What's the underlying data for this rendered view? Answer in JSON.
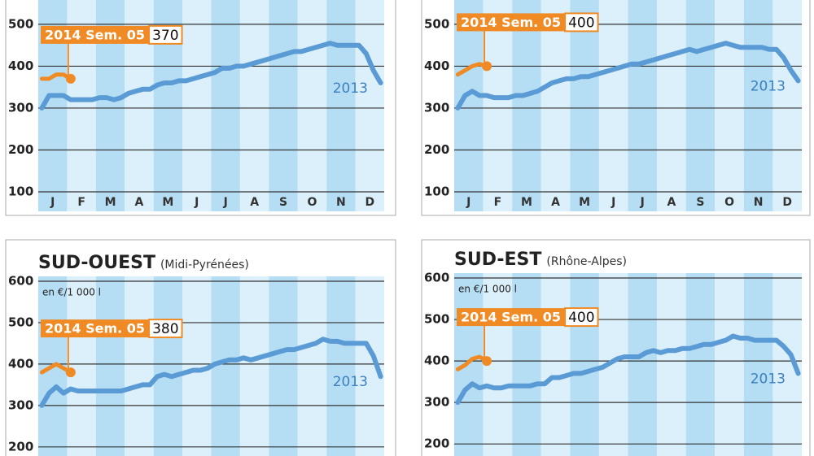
{
  "chart_data": [
    {
      "type": "line",
      "categories": [
        "J",
        null,
        null,
        null,
        "F",
        null,
        null,
        null,
        "M",
        null,
        null,
        null,
        "A",
        null,
        null,
        null,
        "M",
        null,
        null,
        null,
        "J",
        null,
        null,
        null,
        "J",
        null,
        null,
        null,
        "A",
        null,
        null,
        null,
        "S",
        null,
        null,
        null,
        "O",
        null,
        null,
        null,
        "N",
        null,
        null,
        null,
        "D",
        null,
        null,
        null
      ],
      "series": [
        {
          "name": "2013",
          "color": "#5b9bd5",
          "values": [
            300,
            330,
            330,
            330,
            320,
            320,
            320,
            320,
            325,
            325,
            320,
            325,
            335,
            340,
            345,
            345,
            355,
            360,
            360,
            365,
            365,
            370,
            375,
            380,
            385,
            395,
            395,
            400,
            400,
            405,
            410,
            415,
            420,
            425,
            430,
            435,
            435,
            440,
            445,
            450,
            455,
            450,
            450,
            450,
            450,
            430,
            390,
            360
          ]
        },
        {
          "color": "#f08a24",
          "values": [
            370,
            370,
            380,
            380,
            370,
            null,
            null,
            null,
            null,
            null,
            null,
            null,
            null,
            null,
            null,
            null,
            null,
            null,
            null,
            null,
            null,
            null,
            null,
            null,
            null,
            null,
            null,
            null,
            null,
            null,
            null,
            null,
            null,
            null,
            null,
            null,
            null,
            null,
            null,
            null,
            null,
            null,
            null,
            null,
            null,
            null,
            null,
            null
          ]
        }
      ],
      "annotation": {
        "label": "2014 Sem. 05",
        "value": 370
      },
      "ylim": [
        100,
        558
      ],
      "yticks": [
        100,
        200,
        300,
        400,
        500
      ],
      "grid": true
    },
    {
      "type": "line",
      "categories": [
        "J",
        null,
        null,
        null,
        "F",
        null,
        null,
        null,
        "M",
        null,
        null,
        null,
        "A",
        null,
        null,
        null,
        "M",
        null,
        null,
        null,
        "J",
        null,
        null,
        null,
        "J",
        null,
        null,
        null,
        "A",
        null,
        null,
        null,
        "S",
        null,
        null,
        null,
        "O",
        null,
        null,
        null,
        "N",
        null,
        null,
        null,
        "D",
        null,
        null,
        null
      ],
      "series": [
        {
          "name": "2013",
          "color": "#5b9bd5",
          "values": [
            300,
            330,
            340,
            330,
            330,
            325,
            325,
            325,
            330,
            330,
            335,
            340,
            350,
            360,
            365,
            370,
            370,
            375,
            375,
            380,
            385,
            390,
            395,
            400,
            405,
            405,
            410,
            415,
            420,
            425,
            430,
            435,
            440,
            435,
            440,
            445,
            450,
            455,
            450,
            445,
            445,
            445,
            445,
            440,
            440,
            420,
            390,
            365
          ]
        },
        {
          "color": "#f08a24",
          "values": [
            380,
            390,
            400,
            405,
            400,
            null,
            null,
            null,
            null,
            null,
            null,
            null,
            null,
            null,
            null,
            null,
            null,
            null,
            null,
            null,
            null,
            null,
            null,
            null,
            null,
            null,
            null,
            null,
            null,
            null,
            null,
            null,
            null,
            null,
            null,
            null,
            null,
            null,
            null,
            null,
            null,
            null,
            null,
            null,
            null,
            null,
            null,
            null
          ]
        }
      ],
      "annotation": {
        "label": "2014 Sem. 05",
        "value": 400
      },
      "ylim": [
        100,
        558
      ],
      "yticks": [
        100,
        200,
        300,
        400,
        500
      ],
      "grid": true
    },
    {
      "type": "line",
      "title": "SUD-OUEST",
      "subtitle": "(Midi-Pyrénées)",
      "unit_label": "en €/1 000 l",
      "series": [
        {
          "name": "2013",
          "color": "#5b9bd5",
          "values": [
            300,
            330,
            345,
            330,
            340,
            335,
            335,
            335,
            335,
            335,
            335,
            335,
            340,
            345,
            350,
            350,
            370,
            375,
            370,
            375,
            380,
            385,
            385,
            390,
            400,
            405,
            410,
            410,
            415,
            410,
            415,
            420,
            425,
            430,
            435,
            435,
            440,
            445,
            450,
            460,
            455,
            455,
            450,
            450,
            450,
            450,
            420,
            370
          ]
        },
        {
          "color": "#f08a24",
          "values": [
            380,
            390,
            400,
            390,
            380,
            null,
            null,
            null,
            null,
            null,
            null,
            null,
            null,
            null,
            null,
            null,
            null,
            null,
            null,
            null,
            null,
            null,
            null,
            null,
            null,
            null,
            null,
            null,
            null,
            null,
            null,
            null,
            null,
            null,
            null,
            null,
            null,
            null,
            null,
            null,
            null,
            null,
            null,
            null,
            null,
            null,
            null,
            null
          ]
        }
      ],
      "annotation": {
        "label": "2014 Sem. 05",
        "value": 380
      },
      "ylim": [
        178,
        600
      ],
      "yticks": [
        200,
        300,
        400,
        500,
        600
      ],
      "grid": true
    },
    {
      "type": "line",
      "title": "SUD-EST",
      "subtitle": "(Rhône-Alpes)",
      "unit_label": "en €/1 000 l",
      "series": [
        {
          "name": "2013",
          "color": "#5b9bd5",
          "values": [
            300,
            330,
            345,
            335,
            340,
            335,
            335,
            340,
            340,
            340,
            340,
            345,
            345,
            360,
            360,
            365,
            370,
            370,
            375,
            380,
            385,
            395,
            405,
            410,
            410,
            410,
            420,
            425,
            420,
            425,
            425,
            430,
            430,
            435,
            440,
            440,
            445,
            450,
            460,
            455,
            455,
            450,
            450,
            450,
            450,
            435,
            415,
            370
          ]
        },
        {
          "color": "#f08a24",
          "values": [
            380,
            390,
            405,
            410,
            400,
            null,
            null,
            null,
            null,
            null,
            null,
            null,
            null,
            null,
            null,
            null,
            null,
            null,
            null,
            null,
            null,
            null,
            null,
            null,
            null,
            null,
            null,
            null,
            null,
            null,
            null,
            null,
            null,
            null,
            null,
            null,
            null,
            null,
            null,
            null,
            null,
            null,
            null,
            null,
            null,
            null,
            null,
            null
          ]
        }
      ],
      "annotation": {
        "label": "2014 Sem. 05",
        "value": 400
      },
      "ylim": [
        171,
        600
      ],
      "yticks": [
        200,
        300,
        400,
        500,
        600
      ],
      "grid": true
    }
  ]
}
